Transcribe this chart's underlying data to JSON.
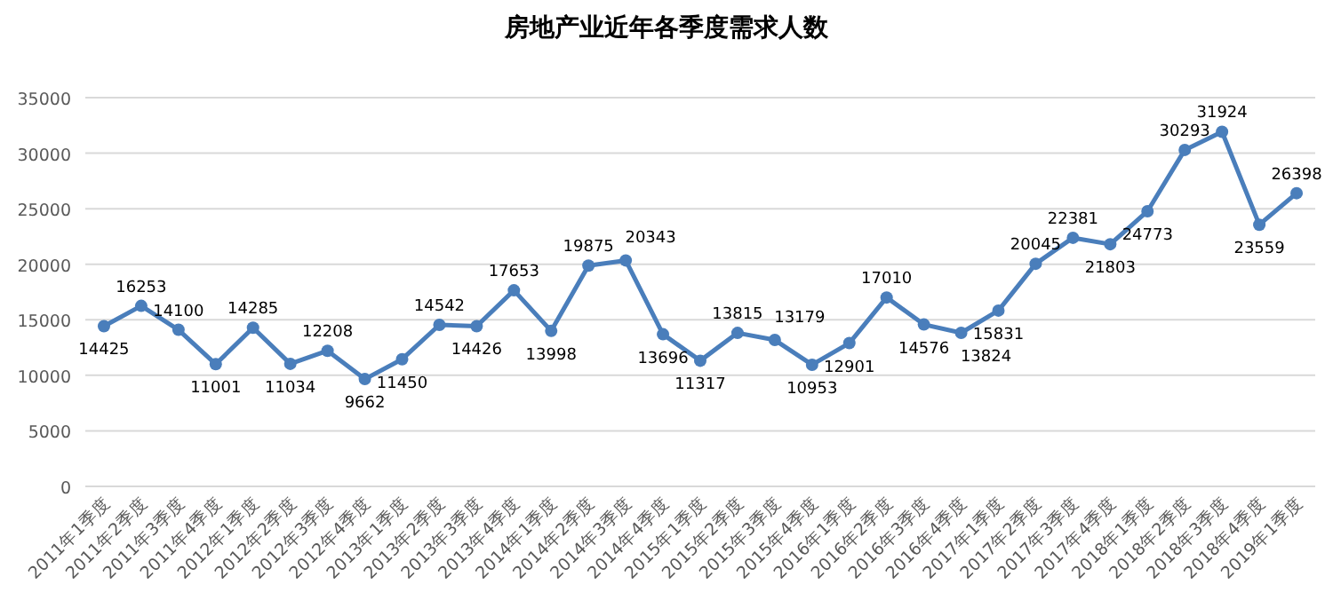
{
  "chart_data": {
    "type": "line",
    "title": "房地产业近年各季度需求人数",
    "categories": [
      "2011年1季度",
      "2011年2季度",
      "2011年3季度",
      "2011年4季度",
      "2012年1季度",
      "2012年2季度",
      "2012年3季度",
      "2012年4季度",
      "2013年1季度",
      "2013年2季度",
      "2013年3季度",
      "2013年4季度",
      "2014年1季度",
      "2014年2季度",
      "2014年3季度",
      "2014年4季度",
      "2015年1季度",
      "2015年2季度",
      "2015年3季度",
      "2015年4季度",
      "2016年1季度",
      "2016年2季度",
      "2016年3季度",
      "2016年4季度",
      "2017年1季度",
      "2017年2季度",
      "2017年3季度",
      "2017年4季度",
      "2018年1季度",
      "2018年2季度",
      "2018年3季度",
      "2018年4季度",
      "2019年1季度"
    ],
    "values": [
      14425,
      16253,
      14100,
      11001,
      14285,
      11034,
      12208,
      9662,
      11450,
      14542,
      14426,
      17653,
      13998,
      19875,
      20343,
      13696,
      11317,
      13815,
      13179,
      10953,
      12901,
      17010,
      14576,
      13824,
      15831,
      20045,
      22381,
      21803,
      24773,
      30293,
      31924,
      23559,
      26398
    ],
    "color": "#4a7ebb",
    "ylim": [
      0,
      35000
    ],
    "yticks": [
      0,
      5000,
      10000,
      15000,
      20000,
      25000,
      30000,
      35000
    ],
    "grid": "y",
    "marker": "circle",
    "line_style": "solid",
    "data_labels": true
  }
}
